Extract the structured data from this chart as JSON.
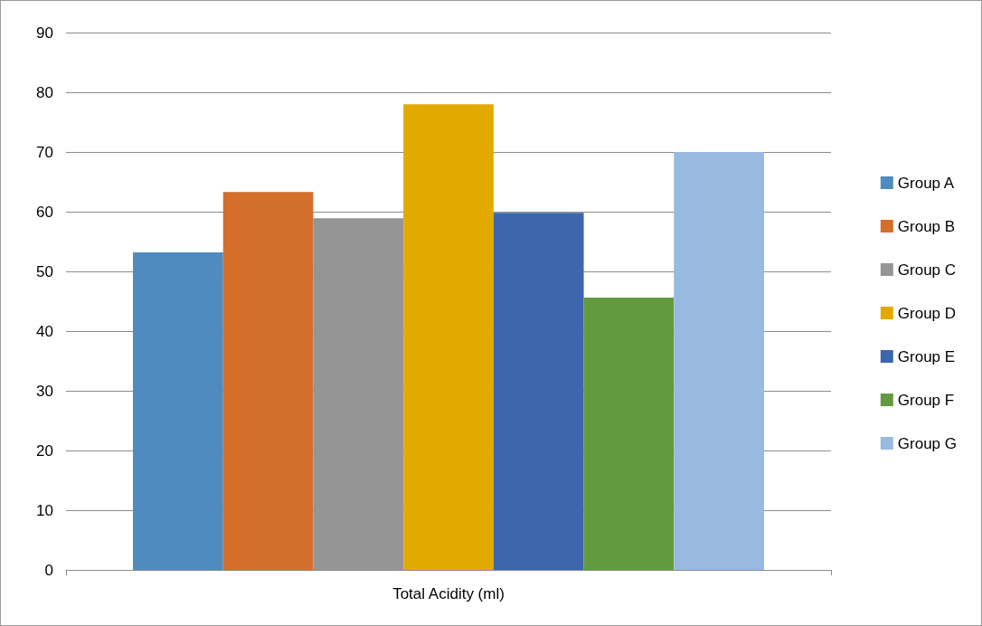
{
  "chart_data": {
    "type": "bar",
    "categories": [
      "Total Acidity (ml)"
    ],
    "series": [
      {
        "name": "Group A",
        "color": "#4f8bbf",
        "values": [
          53.2
        ]
      },
      {
        "name": "Group B",
        "color": "#d46e2b",
        "values": [
          63.3
        ]
      },
      {
        "name": "Group C",
        "color": "#959595",
        "values": [
          58.9
        ]
      },
      {
        "name": "Group D",
        "color": "#e2aa00",
        "values": [
          78
        ]
      },
      {
        "name": "Group E",
        "color": "#3d66ad",
        "values": [
          59.8
        ]
      },
      {
        "name": "Group F",
        "color": "#629b3f",
        "values": [
          45.6
        ]
      },
      {
        "name": "Group G",
        "color": "#98b9e0",
        "values": [
          70
        ]
      }
    ],
    "ylim": [
      0,
      90
    ],
    "yticks": [
      0,
      10,
      20,
      30,
      40,
      50,
      60,
      70,
      80,
      90
    ],
    "grid": "y",
    "legend": "right"
  }
}
